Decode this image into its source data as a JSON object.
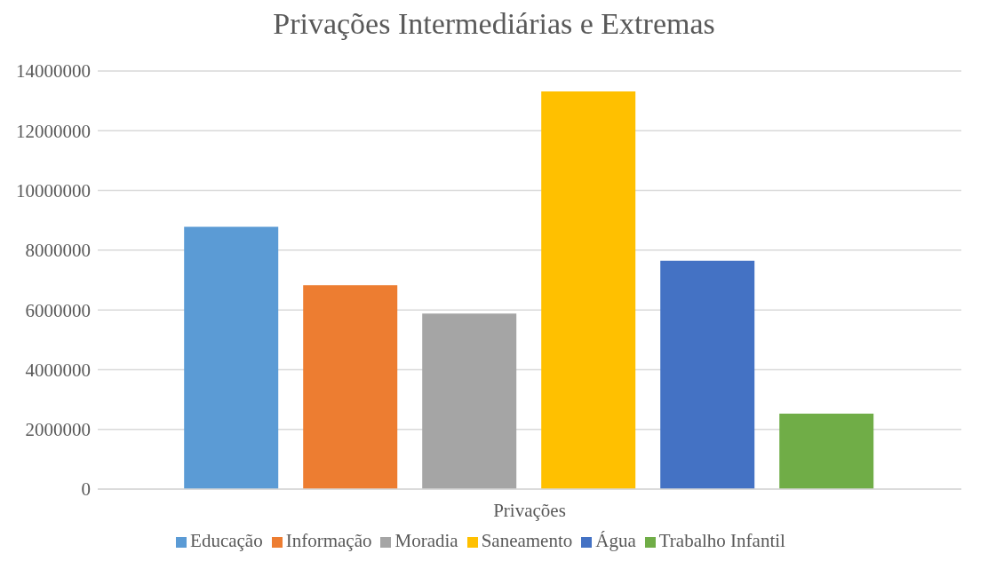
{
  "chart_data": {
    "type": "bar",
    "title": "Privações Intermediárias e Extremas",
    "categories": [
      "Privações"
    ],
    "series": [
      {
        "name": "Educação",
        "color": "#5b9bd5",
        "values": [
          8780000
        ]
      },
      {
        "name": "Informação",
        "color": "#ed7d31",
        "values": [
          6830000
        ]
      },
      {
        "name": "Moradia",
        "color": "#a5a5a5",
        "values": [
          5880000
        ]
      },
      {
        "name": "Saneamento",
        "color": "#ffc000",
        "values": [
          13320000
        ]
      },
      {
        "name": "Água",
        "color": "#4472c4",
        "values": [
          7650000
        ]
      },
      {
        "name": "Trabalho Infantil",
        "color": "#70ad47",
        "values": [
          2530000
        ]
      }
    ],
    "ylim": [
      0,
      14000000
    ],
    "yticks": [
      0,
      2000000,
      4000000,
      6000000,
      8000000,
      10000000,
      12000000,
      14000000
    ],
    "grid": "y",
    "legend": "bottom"
  }
}
